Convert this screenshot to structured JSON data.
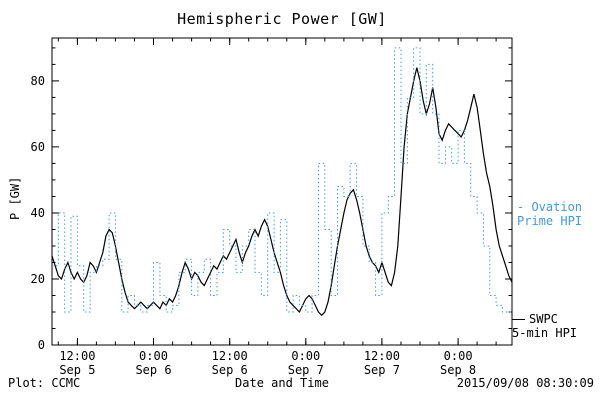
{
  "title": "Hemispheric Power [GW]",
  "xlabel": "Date and Time",
  "ylabel": "P [GW]",
  "footer": {
    "left": "Plot: CCMC",
    "right": "2015/09/08 08:30:09"
  },
  "legend": {
    "ovation": {
      "line1": "- Ovation",
      "line2": "Prime HPI",
      "color": "#4699d0"
    },
    "swpc": {
      "line1": "SWPC",
      "line2": "5-min HPI",
      "color": "#000000"
    }
  },
  "chart_data": {
    "type": "line",
    "title": "Hemispheric Power [GW]",
    "xlabel": "Date and Time",
    "ylabel": "P [GW]",
    "x_unit": "hours since 2015-09-05 00:00 UT",
    "xlim": [
      8,
      80.5
    ],
    "ylim": [
      0,
      93
    ],
    "grid": false,
    "legend_position": "right",
    "y_ticks": [
      0,
      20,
      40,
      60,
      80
    ],
    "y_tick_minor": 5,
    "x_tick_minor_hours": 3,
    "x_ticks": [
      {
        "h": 12,
        "time": "12:00",
        "date": "Sep 5"
      },
      {
        "h": 24,
        "time": "0:00",
        "date": "Sep 6"
      },
      {
        "h": 36,
        "time": "12:00",
        "date": "Sep 6"
      },
      {
        "h": 48,
        "time": "0:00",
        "date": "Sep 7"
      },
      {
        "h": 60,
        "time": "12:00",
        "date": "Sep 7"
      },
      {
        "h": 72,
        "time": "0:00",
        "date": "Sep 8"
      }
    ],
    "series": [
      {
        "name": "SWPC 5-min HPI",
        "color": "#000000",
        "style": "solid",
        "x_start": 8,
        "x_step": 0.5,
        "y": [
          27,
          24,
          21,
          20,
          23,
          25,
          22,
          20,
          22,
          20,
          19,
          21,
          25,
          24,
          22,
          25,
          28,
          33,
          35,
          34,
          30,
          25,
          20,
          16,
          13,
          12,
          11,
          12,
          13,
          12,
          11,
          12,
          13,
          12,
          11,
          13,
          12,
          14,
          13,
          15,
          18,
          22,
          25,
          23,
          20,
          22,
          21,
          19,
          18,
          20,
          22,
          24,
          23,
          25,
          27,
          26,
          28,
          30,
          32,
          28,
          25,
          28,
          30,
          33,
          35,
          33,
          36,
          38,
          36,
          32,
          28,
          25,
          22,
          18,
          15,
          13,
          12,
          11,
          10,
          12,
          14,
          15,
          14,
          12,
          10,
          9,
          10,
          13,
          18,
          24,
          30,
          35,
          40,
          44,
          46,
          47,
          44,
          40,
          35,
          30,
          27,
          25,
          24,
          22,
          25,
          22,
          19,
          18,
          22,
          30,
          45,
          60,
          70,
          75,
          80,
          84,
          80,
          74,
          70,
          73,
          78,
          72,
          64,
          62,
          65,
          67,
          66,
          65,
          64,
          63,
          65,
          68,
          72,
          76,
          72,
          65,
          58,
          52,
          48,
          42,
          35,
          30,
          27,
          24,
          21,
          19
        ]
      },
      {
        "name": "Ovation Prime HPI",
        "color": "#4699d0",
        "style": "dotted-step",
        "x": [
          8,
          9,
          10,
          11,
          12,
          13,
          14,
          15,
          16,
          17,
          18,
          19,
          20,
          21,
          22,
          23,
          24,
          25,
          26,
          27,
          28,
          29,
          30,
          31,
          32,
          33,
          34,
          35,
          36,
          37,
          38,
          39,
          40,
          41,
          42,
          43,
          44,
          45,
          46,
          47,
          48,
          49,
          50,
          51,
          52,
          53,
          54,
          55,
          56,
          57,
          58,
          59,
          60,
          61,
          62,
          63,
          64,
          65,
          66,
          67,
          68,
          69,
          70,
          71,
          72,
          73,
          74,
          75,
          76,
          77,
          78,
          79,
          80
        ],
        "y": [
          24,
          40,
          10,
          39,
          24,
          10,
          22,
          24,
          26,
          40,
          26,
          10,
          15,
          12,
          10,
          12,
          25,
          15,
          10,
          12,
          22,
          26,
          15,
          22,
          26,
          15,
          22,
          35,
          30,
          22,
          30,
          35,
          22,
          15,
          40,
          22,
          38,
          10,
          15,
          12,
          10,
          15,
          55,
          35,
          15,
          48,
          45,
          55,
          45,
          30,
          25,
          15,
          40,
          45,
          90,
          55,
          75,
          90,
          70,
          85,
          70,
          55,
          60,
          55,
          65,
          55,
          45,
          40,
          30,
          15,
          12,
          10,
          10
        ]
      }
    ]
  }
}
